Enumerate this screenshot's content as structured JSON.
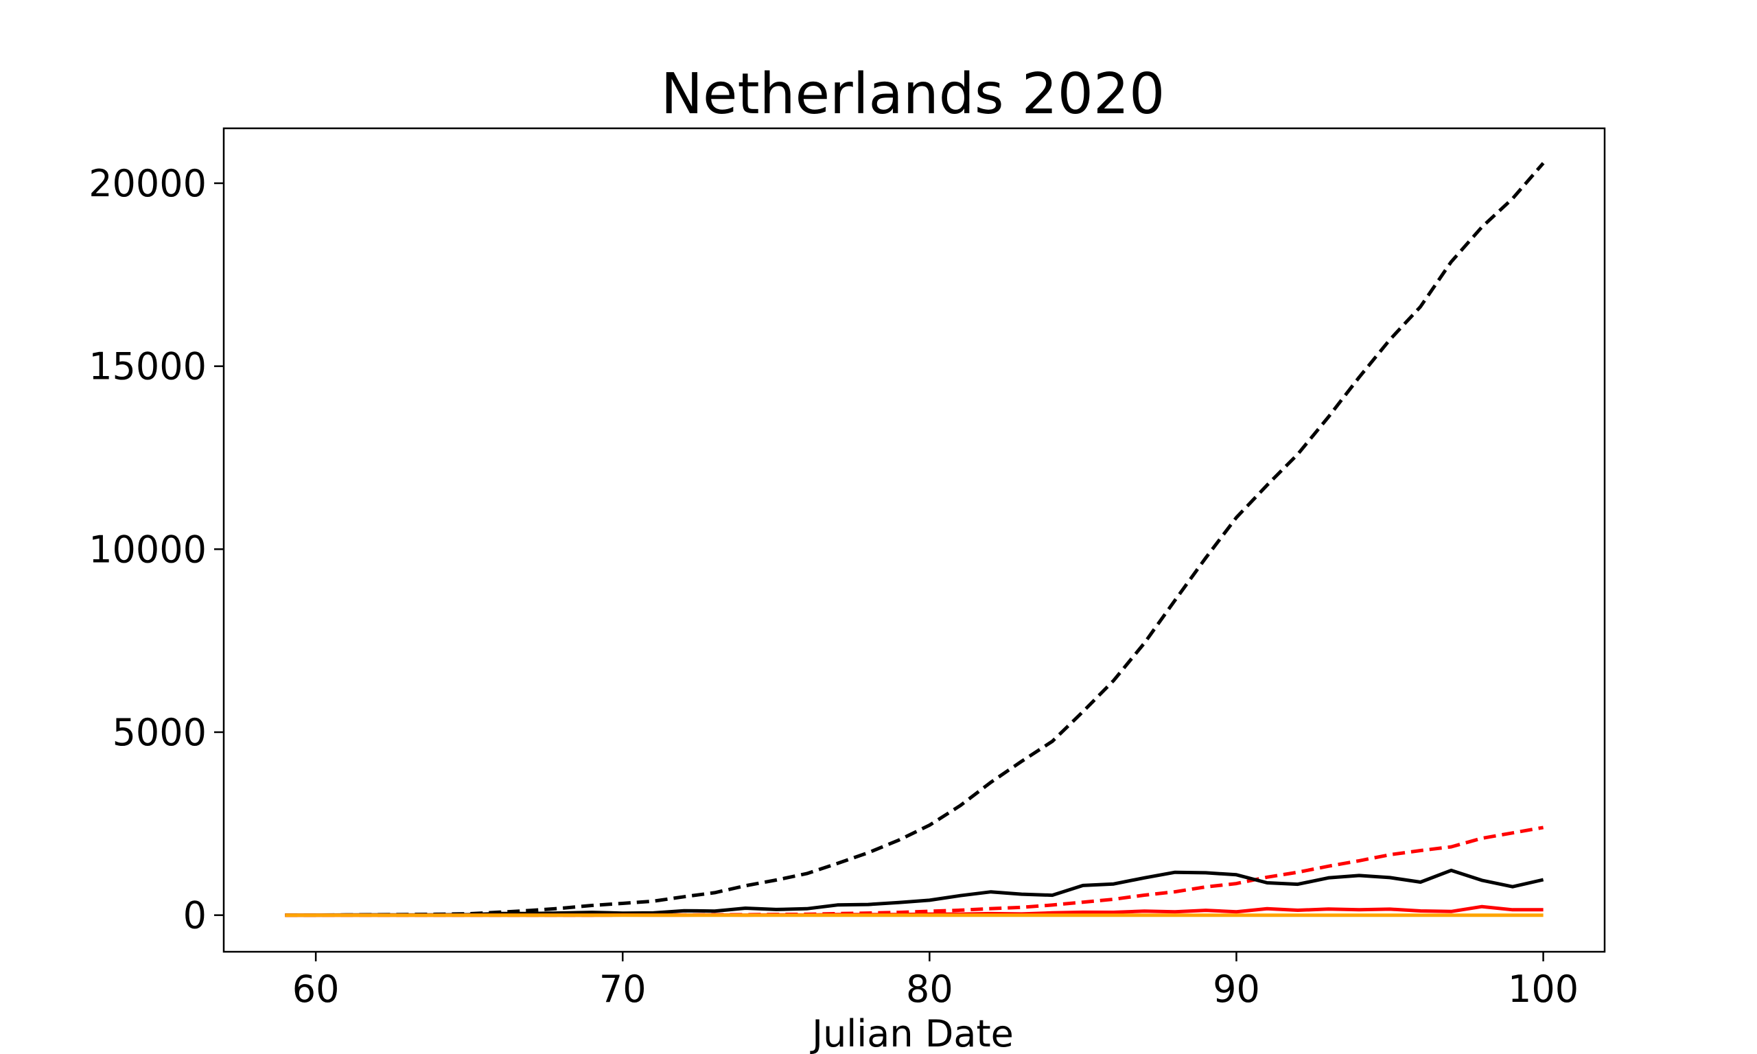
{
  "chart_data": {
    "type": "line",
    "title": "Netherlands 2020",
    "xlabel": "Julian Date",
    "ylabel": "",
    "xlim": [
      57,
      102
    ],
    "ylim": [
      -1000,
      21500
    ],
    "xticks": [
      60,
      70,
      80,
      90,
      100
    ],
    "yticks": [
      0,
      5000,
      10000,
      15000,
      20000
    ],
    "grid": false,
    "legend": "none",
    "x": [
      59,
      60,
      61,
      62,
      63,
      64,
      65,
      66,
      67,
      68,
      69,
      70,
      71,
      72,
      73,
      74,
      75,
      76,
      77,
      78,
      79,
      80,
      81,
      82,
      83,
      84,
      85,
      86,
      87,
      88,
      89,
      90,
      91,
      92,
      93,
      94,
      95,
      96,
      97,
      98,
      99,
      100
    ],
    "series": [
      {
        "color": "#000000",
        "dash": true,
        "values": [
          1,
          2,
          7,
          13,
          18,
          24,
          38,
          82,
          128,
          188,
          265,
          321,
          382,
          503,
          614,
          804,
          959,
          1135,
          1413,
          1705,
          2051,
          2460,
          2994,
          3631,
          4204,
          4749,
          5560,
          6412,
          7431,
          8603,
          9762,
          10866,
          11750,
          12595,
          13614,
          14697,
          15723,
          16627,
          17851,
          18803,
          19580,
          20549
        ]
      },
      {
        "color": "#ff0000",
        "dash": true,
        "values": [
          0,
          0,
          0,
          0,
          0,
          0,
          0,
          0,
          0,
          0,
          0,
          3,
          4,
          5,
          10,
          12,
          20,
          24,
          43,
          58,
          76,
          106,
          136,
          179,
          213,
          276,
          356,
          434,
          546,
          639,
          771,
          864,
          1039,
          1173,
          1339,
          1487,
          1651,
          1766,
          1867,
          2101,
          2248,
          2396
        ]
      },
      {
        "color": "#000000",
        "dash": false,
        "values": [
          1,
          1,
          5,
          6,
          5,
          6,
          14,
          44,
          46,
          60,
          77,
          56,
          61,
          121,
          111,
          190,
          155,
          176,
          278,
          292,
          346,
          409,
          534,
          637,
          573,
          545,
          811,
          852,
          1019,
          1172,
          1159,
          1104,
          884,
          845,
          1019,
          1083,
          1026,
          904,
          1224,
          952,
          777,
          969
        ]
      },
      {
        "color": "#ff0000",
        "dash": false,
        "values": [
          0,
          0,
          0,
          0,
          0,
          0,
          0,
          0,
          0,
          0,
          0,
          3,
          1,
          1,
          5,
          2,
          8,
          4,
          19,
          15,
          18,
          30,
          30,
          43,
          34,
          63,
          80,
          78,
          112,
          93,
          132,
          93,
          175,
          134,
          166,
          148,
          164,
          115,
          101,
          234,
          147,
          148
        ]
      },
      {
        "color": "#ffa500",
        "dash": false,
        "values": [
          0,
          0,
          0,
          0,
          0,
          0,
          0,
          0,
          0,
          0,
          0,
          0,
          0,
          0,
          0,
          0,
          0,
          0,
          0,
          0,
          0,
          0,
          0,
          0,
          0,
          0,
          0,
          0,
          0,
          0,
          0,
          0,
          0,
          0,
          0,
          0,
          0,
          0,
          0,
          0,
          0,
          0
        ]
      }
    ]
  }
}
